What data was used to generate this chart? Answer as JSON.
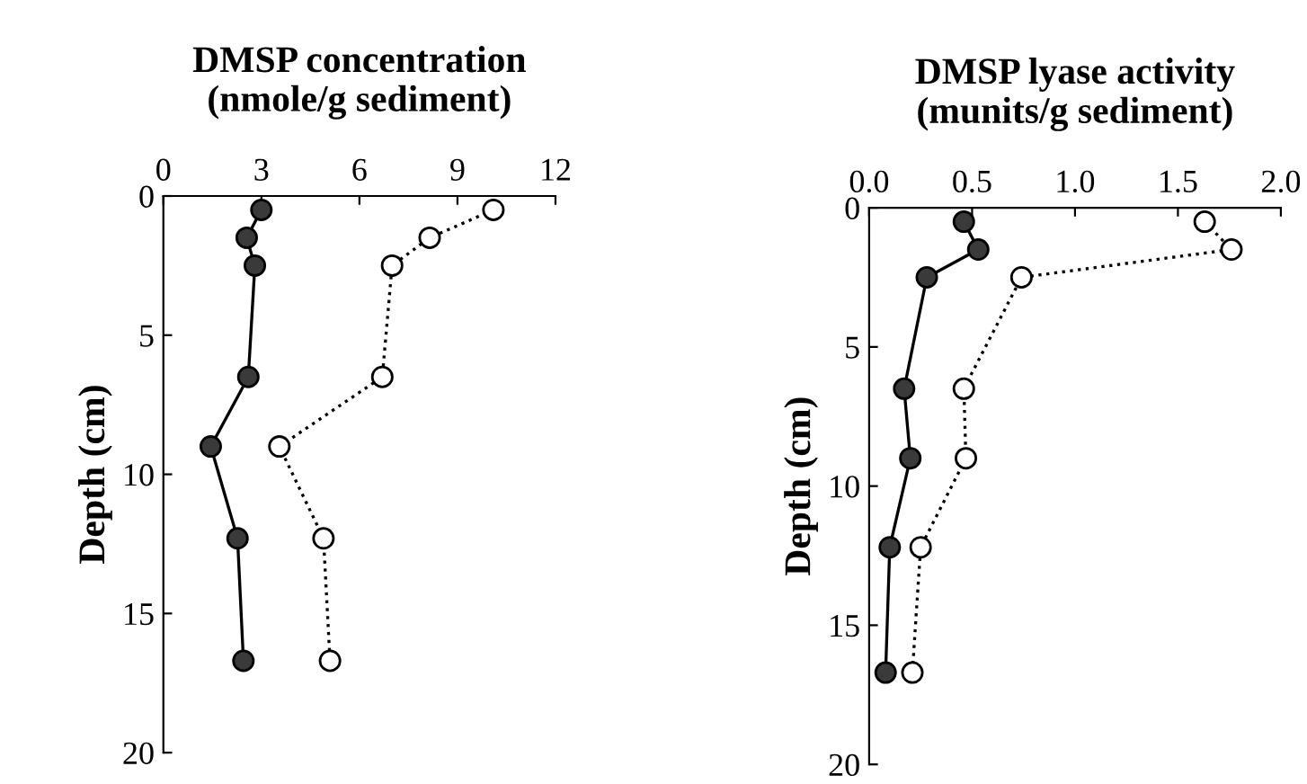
{
  "chart_data": [
    {
      "type": "line",
      "title": "DMSP concentration\n(nmole/g sediment)",
      "ylabel": "Depth (cm)",
      "xlim": [
        0,
        12
      ],
      "xticks": [
        0,
        3,
        6,
        9,
        12
      ],
      "ylim": [
        20,
        0
      ],
      "yticks": [
        0,
        5,
        10,
        15,
        20
      ],
      "grid": false,
      "legend": false,
      "marker": "circle",
      "series": [
        {
          "color": "#3a3a3a",
          "line_style": "solid",
          "x": [
            3.0,
            2.55,
            2.8,
            2.6,
            1.45,
            2.27,
            2.45
          ],
          "values": [
            0.5,
            1.5,
            2.5,
            6.5,
            9.0,
            12.3,
            16.7
          ]
        },
        {
          "color": "#ffffff",
          "line_style": "dotted",
          "x": [
            10.1,
            8.15,
            7.0,
            6.7,
            3.55,
            4.9,
            5.1
          ],
          "values": [
            0.5,
            1.5,
            2.5,
            6.5,
            9.0,
            12.3,
            16.7
          ]
        }
      ]
    },
    {
      "type": "line",
      "title": "DMSP lyase activity\n(munits/g sediment)",
      "ylabel": "Depth (cm)",
      "xlim": [
        0,
        2
      ],
      "xticks": [
        {
          "value": 0,
          "label": "0.0"
        },
        {
          "value": 0.5,
          "label": "0.5"
        },
        {
          "value": 1,
          "label": "1.0"
        },
        {
          "value": 1.5,
          "label": "1.5"
        },
        {
          "value": 2,
          "label": "2.0"
        }
      ],
      "ylim": [
        20,
        0
      ],
      "yticks": [
        0,
        5,
        10,
        15,
        20
      ],
      "grid": false,
      "legend": false,
      "marker": "circle",
      "series": [
        {
          "color": "#3a3a3a",
          "line_style": "solid",
          "x": [
            0.46,
            0.53,
            0.28,
            0.17,
            0.2,
            0.1,
            0.08
          ],
          "values": [
            0.5,
            1.5,
            2.5,
            6.5,
            9.0,
            12.2,
            16.7
          ]
        },
        {
          "color": "#ffffff",
          "line_style": "dotted",
          "x": [
            1.63,
            1.76,
            0.74,
            0.46,
            0.47,
            0.25,
            0.21
          ],
          "values": [
            0.5,
            1.5,
            2.5,
            6.5,
            9.0,
            12.2,
            16.7
          ]
        }
      ]
    }
  ]
}
